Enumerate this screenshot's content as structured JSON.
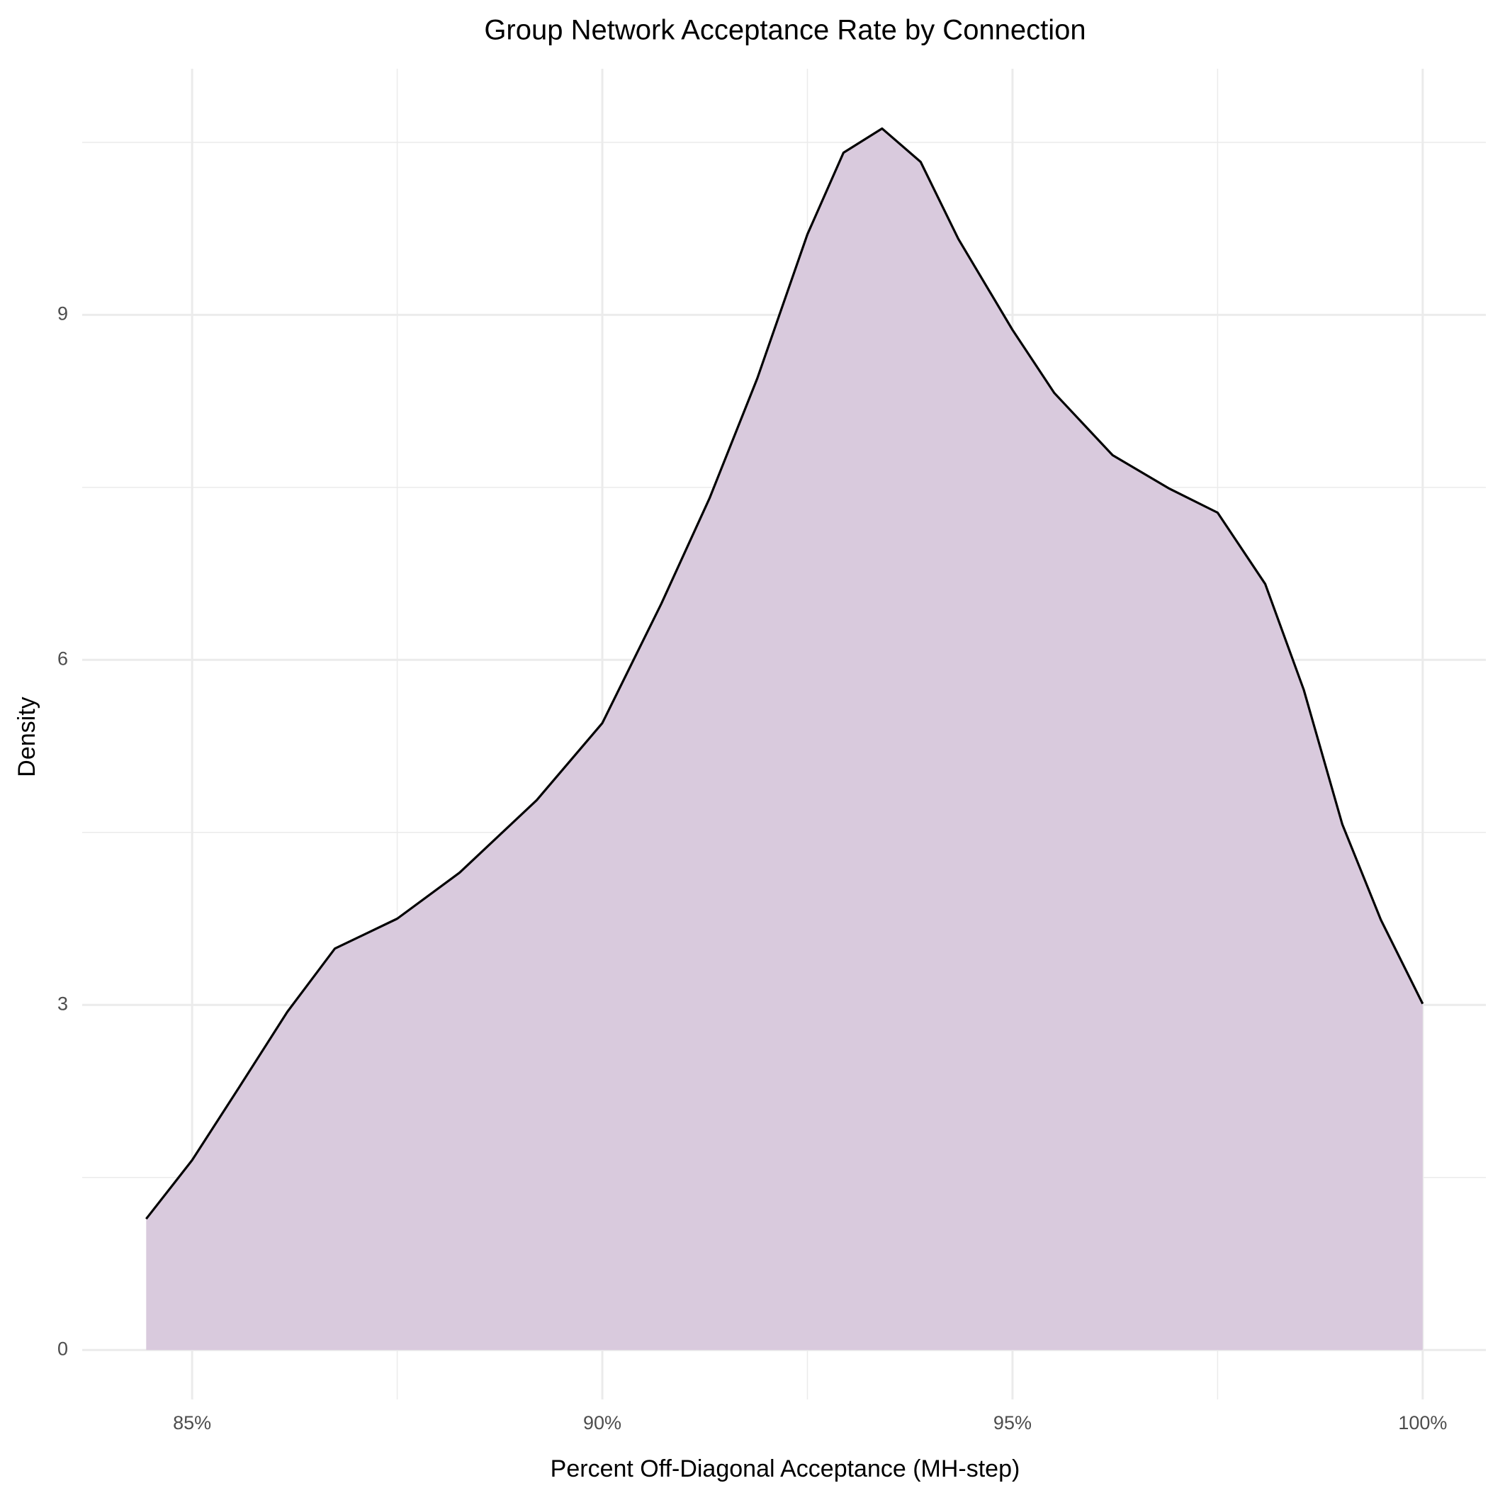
{
  "chart_data": {
    "type": "area",
    "title": "Group Network Acceptance Rate by Connection",
    "x_label": "Percent Off-Diagonal Acceptance (MH-step)",
    "y_label": "Density",
    "x": [
      84.44,
      85,
      85.57,
      86.16,
      86.74,
      87.5,
      88.26,
      89.2,
      90,
      90.72,
      91.31,
      91.89,
      92.5,
      92.94,
      93.41,
      93.88,
      94.34,
      95,
      95.51,
      96.22,
      96.91,
      97.5,
      98.08,
      98.55,
      99.02,
      99.49,
      100
    ],
    "series": [
      {
        "color": "#000000",
        "fill": "#d9cadd",
        "values": [
          1.14,
          1.65,
          2.28,
          2.94,
          3.49,
          3.75,
          4.15,
          4.78,
          5.45,
          6.49,
          7.41,
          8.45,
          9.7,
          10.41,
          10.62,
          10.33,
          9.66,
          8.87,
          8.32,
          7.78,
          7.49,
          7.28,
          6.66,
          5.74,
          4.57,
          3.74,
          3.01
        ]
      }
    ],
    "xlim": [
      83.66,
      100.77
    ],
    "ylim": [
      -0.43,
      11.14
    ],
    "xticks": [
      {
        "value": 85,
        "label": "85%"
      },
      {
        "value": 90,
        "label": "90%"
      },
      {
        "value": 95,
        "label": "95%"
      },
      {
        "value": 100,
        "label": "100%"
      }
    ],
    "yticks": [
      0,
      3,
      6,
      9
    ],
    "x_minor_grid": [
      87.5,
      92.5,
      97.5
    ],
    "y_minor_grid": [
      1.5,
      4.5,
      7.5,
      10.5
    ],
    "grid": true
  }
}
